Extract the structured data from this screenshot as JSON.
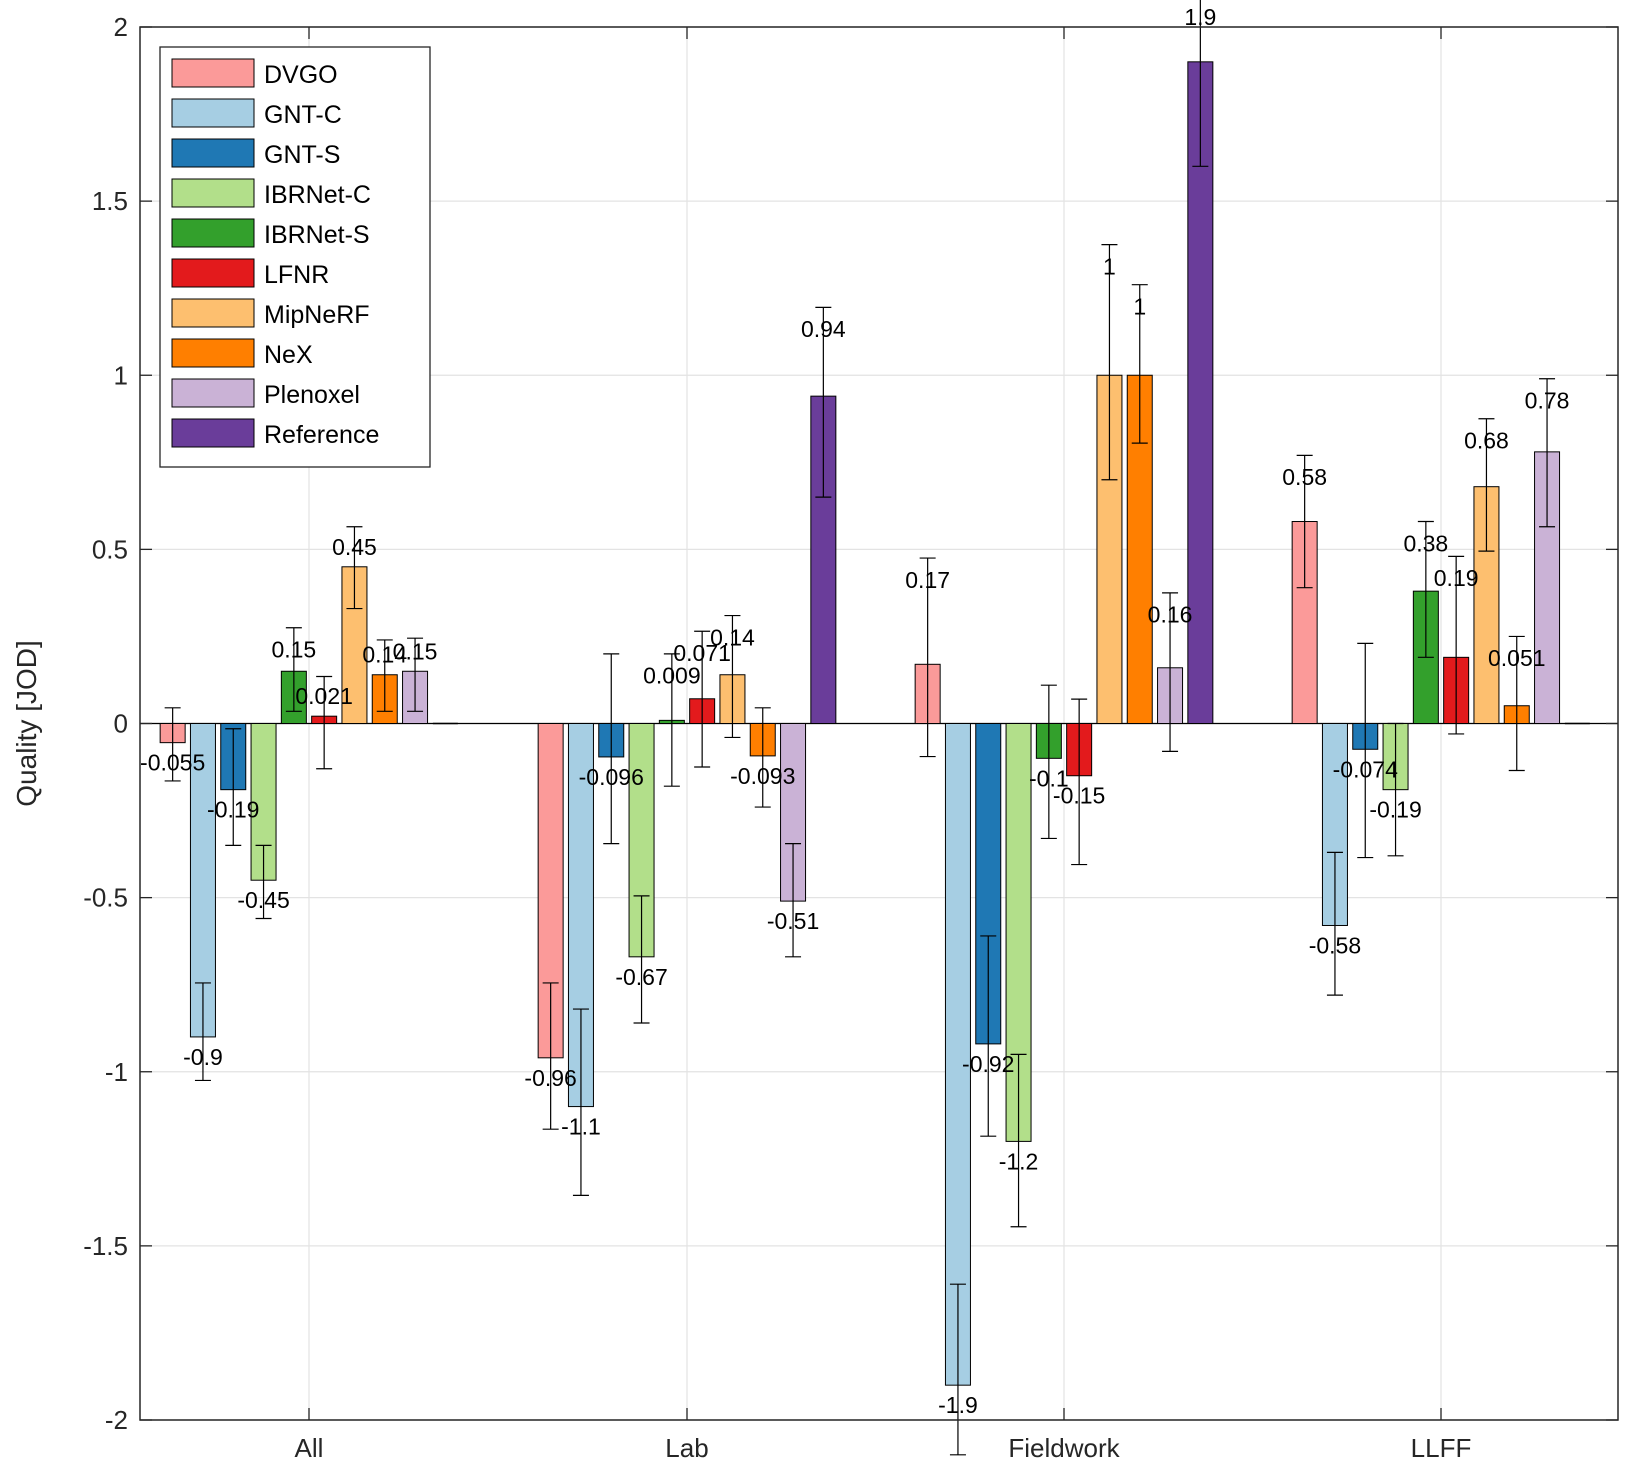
{
  "chart_data": {
    "type": "bar",
    "title": "",
    "xlabel": "",
    "ylabel": "Quality [JOD]",
    "ylim": [
      -2,
      2
    ],
    "yticks": [
      -2,
      -1.5,
      -1,
      -0.5,
      0,
      0.5,
      1,
      1.5,
      2
    ],
    "ytick_labels": [
      "-2",
      "-1.5",
      "-1",
      "-0.5",
      "0",
      "0.5",
      "1",
      "1.5",
      "2"
    ],
    "grid": true,
    "legend_position": "top-left",
    "categories": [
      "All",
      "Lab",
      "Fieldwork",
      "LLFF"
    ],
    "series": [
      {
        "name": "DVGO",
        "color": "#fb9a99",
        "values": [
          -0.055,
          -0.96,
          0.17,
          0.58
        ],
        "labels": [
          "-0.055",
          "-0.96",
          "0.17",
          "0.58"
        ],
        "err_low": [
          -0.165,
          -1.165,
          -0.095,
          0.39
        ],
        "err_high": [
          0.045,
          -0.745,
          0.475,
          0.77
        ]
      },
      {
        "name": "GNT-C",
        "color": "#a6cee3",
        "values": [
          -0.9,
          -1.1,
          -1.9,
          -0.58
        ],
        "labels": [
          "-0.9",
          "-1.1",
          "-1.9",
          "-0.58"
        ],
        "err_low": [
          -1.025,
          -1.355,
          -2.1,
          -0.78
        ],
        "err_high": [
          -0.745,
          -0.82,
          -1.61,
          -0.37
        ]
      },
      {
        "name": "GNT-S",
        "color": "#1f78b4",
        "values": [
          -0.19,
          -0.096,
          -0.92,
          -0.074
        ],
        "labels": [
          "-0.19",
          "-0.096",
          "-0.92",
          "-0.074"
        ],
        "err_low": [
          -0.35,
          -0.345,
          -1.185,
          -0.385
        ],
        "err_high": [
          -0.015,
          0.2,
          -0.61,
          0.23
        ]
      },
      {
        "name": "IBRNet-C",
        "color": "#b2df8a",
        "values": [
          -0.45,
          -0.67,
          -1.2,
          -0.19
        ],
        "labels": [
          "-0.45",
          "-0.67",
          "-1.2",
          "-0.19"
        ],
        "err_low": [
          -0.56,
          -0.86,
          -1.445,
          -0.38
        ],
        "err_high": [
          -0.35,
          -0.495,
          -0.95,
          0.0
        ]
      },
      {
        "name": "IBRNet-S",
        "color": "#33a02c",
        "values": [
          0.15,
          0.009,
          -0.1,
          0.38
        ],
        "labels": [
          "0.15",
          "0.009",
          "-0.1",
          "0.38"
        ],
        "err_low": [
          0.035,
          -0.18,
          -0.33,
          0.19
        ],
        "err_high": [
          0.275,
          0.2,
          0.11,
          0.58
        ]
      },
      {
        "name": "LFNR",
        "color": "#e31a1c",
        "values": [
          0.021,
          0.071,
          -0.15,
          0.19
        ],
        "labels": [
          "0.021",
          "0.071",
          "-0.15",
          "0.19"
        ],
        "err_low": [
          -0.13,
          -0.125,
          -0.405,
          -0.03
        ],
        "err_high": [
          0.135,
          0.265,
          0.07,
          0.48
        ]
      },
      {
        "name": "MipNeRF",
        "color": "#fdbf6f",
        "values": [
          0.45,
          0.14,
          1.0,
          0.68
        ],
        "labels": [
          "0.45",
          "0.14",
          "1",
          "0.68"
        ],
        "err_low": [
          0.33,
          -0.04,
          0.7,
          0.495
        ],
        "err_high": [
          0.565,
          0.31,
          1.375,
          0.875
        ]
      },
      {
        "name": "NeX",
        "color": "#ff7f00",
        "values": [
          0.14,
          -0.093,
          1.0,
          0.051
        ],
        "labels": [
          "0.14",
          "-0.093",
          "1",
          "0.051"
        ],
        "err_low": [
          0.035,
          -0.24,
          0.805,
          -0.135
        ],
        "err_high": [
          0.24,
          0.045,
          1.26,
          0.25
        ]
      },
      {
        "name": "Plenoxel",
        "color": "#cab2d6",
        "values": [
          0.15,
          -0.51,
          0.16,
          0.78
        ],
        "labels": [
          "0.15",
          "-0.51",
          "0.16",
          "0.78"
        ],
        "err_low": [
          0.035,
          -0.67,
          -0.08,
          0.565
        ],
        "err_high": [
          0.245,
          -0.345,
          0.375,
          0.99
        ]
      },
      {
        "name": "Reference",
        "color": "#6a3d9a",
        "values": [
          0,
          0.94,
          1.9,
          0
        ],
        "labels": [
          "",
          "0.94",
          "1.9",
          ""
        ],
        "err_low": [
          null,
          0.65,
          1.6,
          null
        ],
        "err_high": [
          null,
          1.195,
          2.1,
          null
        ]
      }
    ]
  }
}
